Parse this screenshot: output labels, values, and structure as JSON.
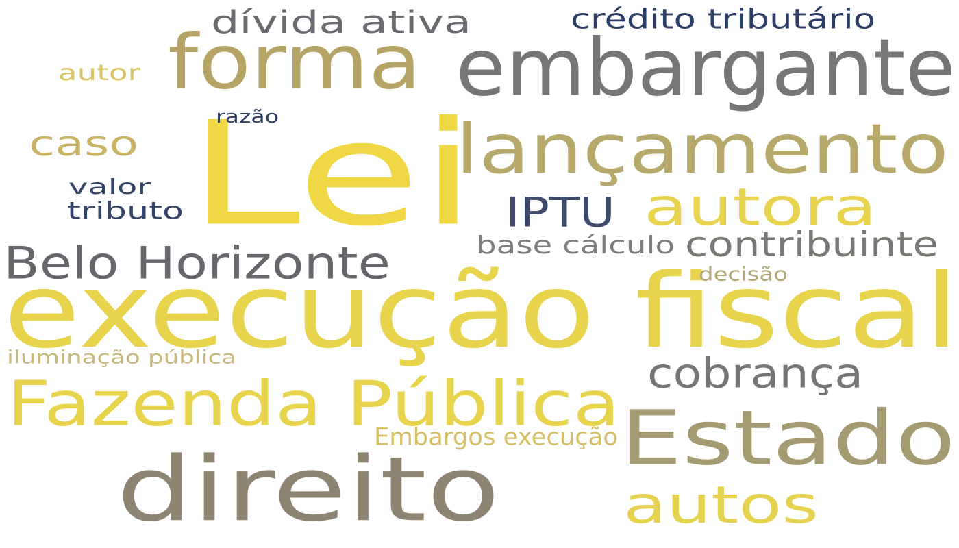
{
  "words": [
    {
      "text": "Lei",
      "color": "#efd843"
    },
    {
      "text": "execução fiscal",
      "color": "#e8d44c"
    },
    {
      "text": "embargante",
      "color": "#767676"
    },
    {
      "text": "forma",
      "color": "#b5a466"
    },
    {
      "text": "lançamento",
      "color": "#b7a86c"
    },
    {
      "text": "Estado",
      "color": "#a59b72"
    },
    {
      "text": "direito",
      "color": "#8d8572"
    },
    {
      "text": "Fazenda Pública",
      "color": "#e8d44c"
    },
    {
      "text": "Belo Horizonte",
      "color": "#66676c"
    },
    {
      "text": "autora",
      "color": "#e7d34d"
    },
    {
      "text": "autos",
      "color": "#e5d24f"
    },
    {
      "text": "cobrança",
      "color": "#767674"
    },
    {
      "text": "contribuinte",
      "color": "#7a7a74"
    },
    {
      "text": "dívida ativa",
      "color": "#6a6b70"
    },
    {
      "text": "caso",
      "color": "#c8b464"
    },
    {
      "text": "IPTU",
      "color": "#3d4a6b"
    },
    {
      "text": "crédito tributário",
      "color": "#2c3d66"
    },
    {
      "text": "base cálculo",
      "color": "#7e7e7a"
    },
    {
      "text": "valor",
      "color": "#34436a"
    },
    {
      "text": "tributo",
      "color": "#34436a"
    },
    {
      "text": "autor",
      "color": "#d8c466"
    },
    {
      "text": "Embargos execução",
      "color": "#d6c067"
    },
    {
      "text": "iluminação pública",
      "color": "#c8b87a"
    },
    {
      "text": "decisão",
      "color": "#b2a676"
    },
    {
      "text": "razão",
      "color": "#2c3d66"
    }
  ]
}
